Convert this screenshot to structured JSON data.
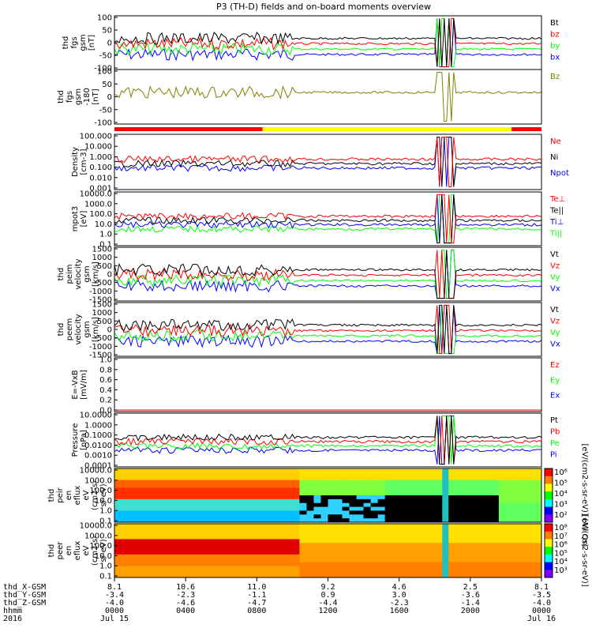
{
  "title": "P3 (TH-D) fields and on-board moments overview",
  "colors": {
    "black": "#000000",
    "red": "#ff0000",
    "green": "#00ff00",
    "blue": "#0000ff",
    "yellow": "#ffff00",
    "cyan": "#00ffff",
    "orange": "#ffa500",
    "darkred": "#8b0000"
  },
  "chart_data": [
    {
      "type": "line",
      "ylabel": [
        "thd",
        "fgs",
        "gsm",
        "[nT]"
      ],
      "yticks": [
        "100",
        "50",
        "0",
        "-50",
        "-100"
      ],
      "ylim": [
        -100,
        100
      ],
      "legend": [
        "Bt",
        "bz",
        "by",
        "bx"
      ],
      "legend_colors": [
        "#000000",
        "#ff0000",
        "#00ff00",
        "#0000ff"
      ]
    },
    {
      "type": "line",
      "ylabel": [
        "thd",
        "fgs",
        "gsm",
        "-180",
        "[nT]"
      ],
      "yticks": [
        "100",
        "50",
        "0",
        "-50",
        "-100"
      ],
      "ylim": [
        -120,
        100
      ],
      "legend": [
        "Bz"
      ],
      "legend_colors": [
        "#808000"
      ]
    },
    {
      "type": "line",
      "ylabel": [
        "Density",
        "[cm-3]"
      ],
      "yticks": [
        "100.000",
        "10.000",
        "1.000",
        "0.100",
        "0.010",
        "0.001"
      ],
      "log": true,
      "legend": [
        "Ne",
        "Ni",
        "Npot"
      ],
      "legend_colors": [
        "#ff0000",
        "#000000",
        "#0000ff"
      ]
    },
    {
      "type": "line",
      "ylabel": [
        "mpot3",
        "[eV]"
      ],
      "yticks": [
        "10000.0",
        "1000.0",
        "100.0",
        "10.0",
        "1.0",
        "0.1"
      ],
      "log": true,
      "legend": [
        "Te⊥",
        "Te||",
        "Ti⊥",
        "Ti||"
      ],
      "legend_colors": [
        "#ff0000",
        "#000000",
        "#0000ff",
        "#00ff00"
      ]
    },
    {
      "type": "line",
      "ylabel": [
        "thd",
        "peim",
        "velocity",
        "gsm",
        "[km/s]"
      ],
      "yticks": [
        "1500",
        "1000",
        "500",
        "0",
        "-500",
        "-1000",
        "-1500"
      ],
      "ylim": [
        -1500,
        1500
      ],
      "legend": [
        "Vt",
        "Vz",
        "Vy",
        "Vx"
      ],
      "legend_colors": [
        "#000000",
        "#ff0000",
        "#00ff00",
        "#0000ff"
      ]
    },
    {
      "type": "line",
      "ylabel": [
        "thd",
        "peem",
        "velocity",
        "gsm",
        "[km/s]"
      ],
      "yticks": [
        "1500",
        "1000",
        "500",
        "0",
        "-500",
        "-1000",
        "-1500"
      ],
      "ylim": [
        -1500,
        1500
      ],
      "legend": [
        "Vt",
        "Vz",
        "Vy",
        "Vx"
      ],
      "legend_colors": [
        "#000000",
        "#ff0000",
        "#00ff00",
        "#0000ff"
      ]
    },
    {
      "type": "line",
      "ylabel": [
        "E=-VxB",
        "[mV/m]"
      ],
      "yticks": [
        "1.0",
        "0.8",
        "0.6",
        "0.4",
        "0.2",
        "0.0"
      ],
      "ylim": [
        0,
        1
      ],
      "legend": [
        "Ez",
        "Ey",
        "Ex"
      ],
      "legend_colors": [
        "#ff0000",
        "#00ff00",
        "#0000ff"
      ]
    },
    {
      "type": "line",
      "ylabel": [
        "Pressure",
        "[nPa]"
      ],
      "yticks": [
        "10.0000",
        "1.0000",
        "0.1000",
        "0.0100",
        "0.0010",
        "0.0001"
      ],
      "log": true,
      "legend": [
        "Pt",
        "Pb",
        "Pe",
        "Pi"
      ],
      "legend_colors": [
        "#000000",
        "#ff0000",
        "#00ff00",
        "#0000ff"
      ]
    },
    {
      "type": "heatmap",
      "ylabel": [
        "thd",
        "peir",
        "en",
        "eflux",
        "eV",
        "(cm2-s-",
        "sr-eV)"
      ],
      "yticks": [
        "10000.0",
        "1000.0",
        "100.0",
        "10.0",
        "1.0",
        "0.1"
      ],
      "log": true,
      "colorbar_ticks": [
        "10⁶",
        "10⁵",
        "10⁴",
        "10³",
        "10²"
      ],
      "colorbar_label": "[eV/(cm2-s-sr-eV)] (All Qs)"
    },
    {
      "type": "heatmap",
      "ylabel": [
        "thd",
        "peer",
        "en",
        "eflux",
        "eV",
        "(cm2-s-",
        "sr-eV)"
      ],
      "yticks": [
        "10000.0",
        "1000.0",
        "100.0",
        "10.0",
        "1.0",
        "0.1"
      ],
      "log": true,
      "colorbar_ticks": [
        "10⁸",
        "10⁷",
        "10⁶",
        "10⁵",
        "10⁴",
        "10³"
      ],
      "colorbar_label": "[eV/(cm2-s-sr-eV)]"
    }
  ],
  "x_axis": {
    "row_labels": [
      "thd_X-GSM",
      "thd_Y-GSM",
      "thd_Z-GSM",
      "hhmm",
      "2016"
    ],
    "ticks": [
      {
        "x": "8.1",
        "y": "-3.4",
        "z": "-4.0",
        "hhmm": "0000",
        "date": "Jul 15"
      },
      {
        "x": "10.6",
        "y": "-2.3",
        "z": "-4.6",
        "hhmm": "0400",
        "date": ""
      },
      {
        "x": "11.0",
        "y": "-1.1",
        "z": "-4.7",
        "hhmm": "0800",
        "date": ""
      },
      {
        "x": "9.2",
        "y": "0.9",
        "z": "-4.4",
        "hhmm": "1200",
        "date": ""
      },
      {
        "x": "4.6",
        "y": "3.0",
        "z": "-2.3",
        "hhmm": "1600",
        "date": ""
      },
      {
        "x": "2.5",
        "y": "-3.6",
        "z": "-1.4",
        "hhmm": "2000",
        "date": ""
      },
      {
        "x": "8.1",
        "y": "-3.5",
        "z": "-4.0",
        "hhmm": "0000",
        "date": "Jul 16"
      }
    ]
  }
}
